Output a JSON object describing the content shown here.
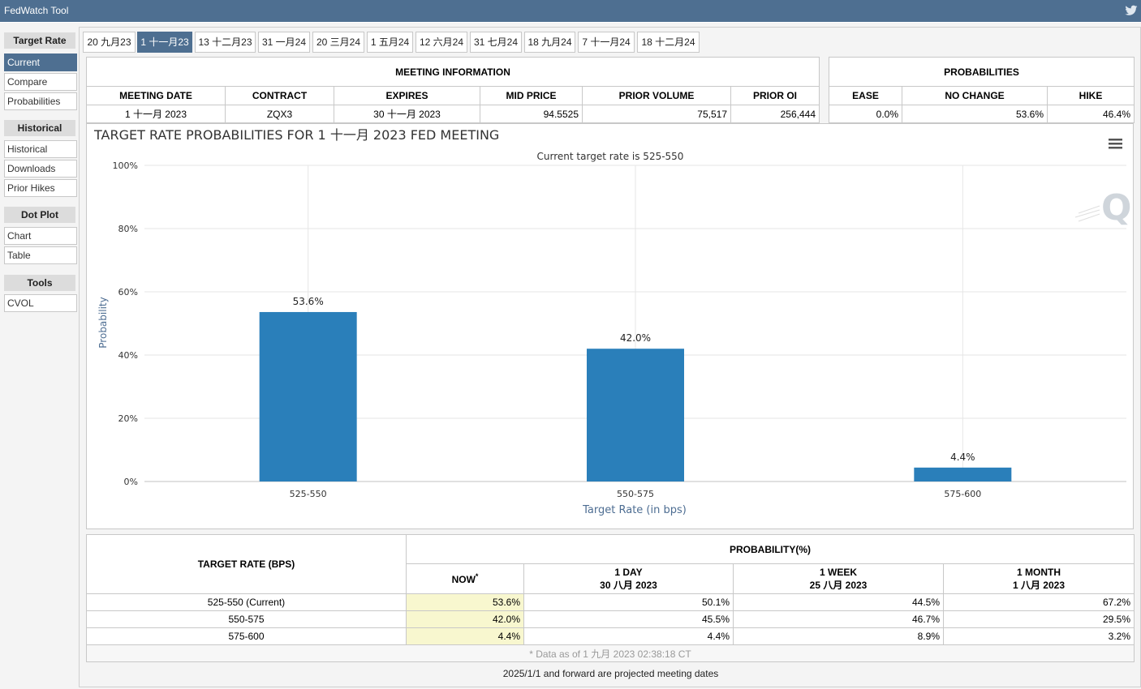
{
  "app": {
    "title": "FedWatch Tool",
    "share_icon": "twitter-icon"
  },
  "sidebar": {
    "groups": [
      {
        "heading": "Target Rate",
        "items": [
          "Current",
          "Compare",
          "Probabilities"
        ]
      },
      {
        "heading": "Historical",
        "items": [
          "Historical",
          "Downloads",
          "Prior Hikes"
        ]
      },
      {
        "heading": "Dot Plot",
        "items": [
          "Chart",
          "Table"
        ]
      },
      {
        "heading": "Tools",
        "items": [
          "CVOL"
        ]
      }
    ],
    "active": "Current"
  },
  "tabs": [
    "20 九月23",
    "1 十一月23",
    "13 十二月23",
    "31 一月24",
    "20 三月24",
    "1 五月24",
    "12 六月24",
    "31 七月24",
    "18 九月24",
    "7 十一月24",
    "18 十二月24"
  ],
  "active_tab": "1 十一月23",
  "meeting_info": {
    "title": "MEETING INFORMATION",
    "headers": [
      "MEETING DATE",
      "CONTRACT",
      "EXPIRES",
      "MID PRICE",
      "PRIOR VOLUME",
      "PRIOR OI"
    ],
    "row": [
      "1 十一月 2023",
      "ZQX3",
      "30 十一月 2023",
      "94.5525",
      "75,517",
      "256,444"
    ]
  },
  "probabilities": {
    "title": "PROBABILITIES",
    "headers": [
      "EASE",
      "NO CHANGE",
      "HIKE"
    ],
    "row": [
      "0.0%",
      "53.6%",
      "46.4%"
    ]
  },
  "chart_data": {
    "type": "bar",
    "title": "TARGET RATE PROBABILITIES FOR 1 十一月 2023 FED MEETING",
    "subtitle": "Current target rate is 525-550",
    "categories": [
      "525-550",
      "550-575",
      "575-600"
    ],
    "values": [
      53.6,
      42.0,
      4.4
    ],
    "data_labels": [
      "53.6%",
      "42.0%",
      "4.4%"
    ],
    "xlabel": "Target Rate (in bps)",
    "ylabel": "Probability",
    "ylim": [
      0,
      100
    ],
    "yticks": [
      "0%",
      "20%",
      "40%",
      "60%",
      "80%",
      "100%"
    ],
    "bar_color": "#2a7fba",
    "grid": true,
    "menu_icon": "hamburger-menu-icon",
    "watermark_icon": "quikstrike-q-icon"
  },
  "history_table": {
    "target_header": "TARGET RATE (BPS)",
    "prob_header": "PROBABILITY(%)",
    "cols": [
      {
        "line1": "NOW",
        "sup": "*",
        "line2": ""
      },
      {
        "line1": "1 DAY",
        "line2": "30 八月 2023"
      },
      {
        "line1": "1 WEEK",
        "line2": "25 八月 2023"
      },
      {
        "line1": "1 MONTH",
        "line2": "1 八月 2023"
      }
    ],
    "rows": [
      {
        "label": "525-550 (Current)",
        "vals": [
          "53.6%",
          "50.1%",
          "44.5%",
          "67.2%"
        ]
      },
      {
        "label": "550-575",
        "vals": [
          "42.0%",
          "45.5%",
          "46.7%",
          "29.5%"
        ]
      },
      {
        "label": "575-600",
        "vals": [
          "4.4%",
          "4.4%",
          "8.9%",
          "3.2%"
        ]
      }
    ],
    "note": "* Data as of 1 九月 2023 02:38:18 CT"
  },
  "footer": "2025/1/1 and forward are projected meeting dates"
}
